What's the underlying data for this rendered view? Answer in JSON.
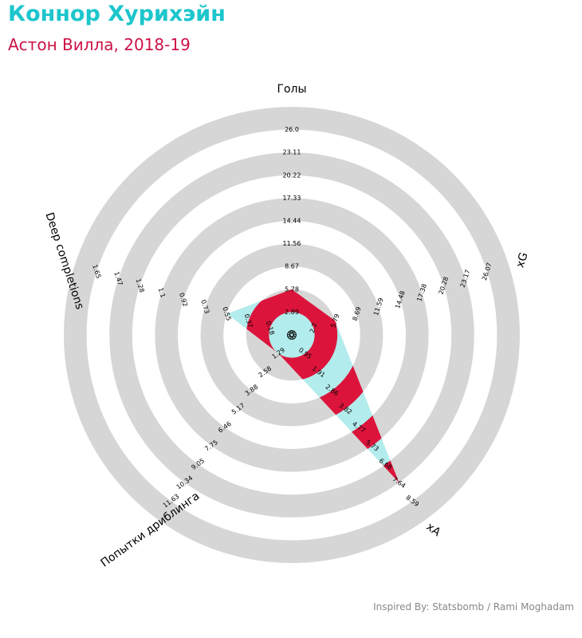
{
  "header": {
    "title": "Коннор Хурихэйн",
    "subtitle": "Астон Вилла, 2018-19"
  },
  "footer": {
    "credit": "Inspired By: Statsbomb / Rami Moghadam"
  },
  "colors": {
    "title": "#1cc6cc",
    "subtitle": "#cc1245",
    "ring": "#d6d6d6",
    "fill_light": "#b3ecec",
    "fill_dark": "#dc143c",
    "credit": "#888888"
  },
  "chart_data": {
    "type": "radar",
    "title": "Коннор Хурихэйн",
    "subtitle": "Астон Вилла, 2018-19",
    "axes": [
      {
        "label": "Голы",
        "ticks": [
          "0.0",
          "2.89",
          "5.78",
          "8.67",
          "11.56",
          "14.44",
          "17.33",
          "20.22",
          "23.11",
          "26.0"
        ],
        "value": 5.78
      },
      {
        "label": "xG",
        "ticks": [
          "0.0",
          "2.2",
          "5.79",
          "8.69",
          "11.59",
          "14.48",
          "17.38",
          "20.28",
          "23.17",
          "26.07"
        ],
        "value": 5.79
      },
      {
        "label": "xA",
        "ticks": [
          "0.0",
          "0.95",
          "1.91",
          "2.86",
          "3.82",
          "4.77",
          "5.73",
          "6.68",
          "7.64",
          "8.59"
        ],
        "value": 7.64
      },
      {
        "label": "Попытки дриблинга",
        "ticks": [
          "0.0",
          "1.29",
          "2.58",
          "3.88",
          "5.17",
          "6.46",
          "7.75",
          "9.05",
          "10.34",
          "11.63"
        ],
        "value": 1.29
      },
      {
        "label": "Deep completions",
        "ticks": [
          "0.0",
          "0.18",
          "0.37",
          "0.55",
          "0.73",
          "0.92",
          "1.1",
          "1.28",
          "1.47",
          "1.65"
        ],
        "value": 0.55
      }
    ]
  }
}
